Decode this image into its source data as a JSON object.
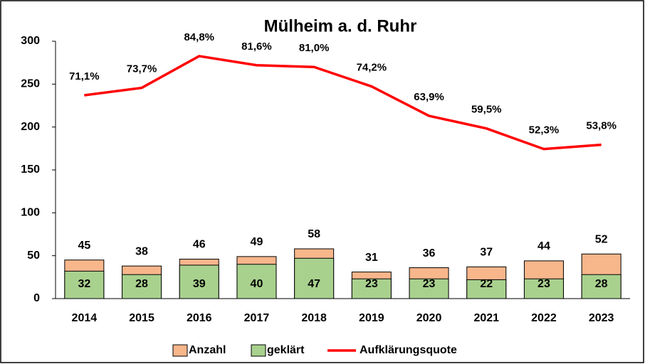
{
  "chart_data": {
    "type": "bar",
    "title": "Mülheim a. d. Ruhr",
    "categories": [
      "2014",
      "2015",
      "2016",
      "2017",
      "2018",
      "2019",
      "2020",
      "2021",
      "2022",
      "2023"
    ],
    "series": [
      {
        "name": "Anzahl",
        "type": "bar",
        "color": "#f8b68b",
        "values": [
          45,
          38,
          46,
          49,
          58,
          31,
          36,
          37,
          44,
          52
        ]
      },
      {
        "name": "geklärt",
        "type": "bar",
        "color": "#a9d18e",
        "values": [
          32,
          28,
          39,
          40,
          47,
          23,
          23,
          22,
          23,
          28
        ]
      },
      {
        "name": "Aufklärungsquote",
        "type": "line",
        "axis": "y2",
        "color": "#ff0000",
        "values": [
          71.1,
          73.7,
          84.8,
          81.6,
          81.0,
          74.2,
          63.9,
          59.5,
          52.3,
          53.8
        ],
        "value_labels": [
          "71,1%",
          "73,7%",
          "84,8%",
          "81,6%",
          "81,0%",
          "74,2%",
          "63,9%",
          "59,5%",
          "52,3%",
          "53,8%"
        ]
      }
    ],
    "ylim": [
      0,
      300
    ],
    "yticks": [
      0,
      50,
      100,
      150,
      200,
      250,
      300
    ],
    "y2lim": [
      0,
      90
    ],
    "grid": false,
    "legend": "bottom"
  }
}
